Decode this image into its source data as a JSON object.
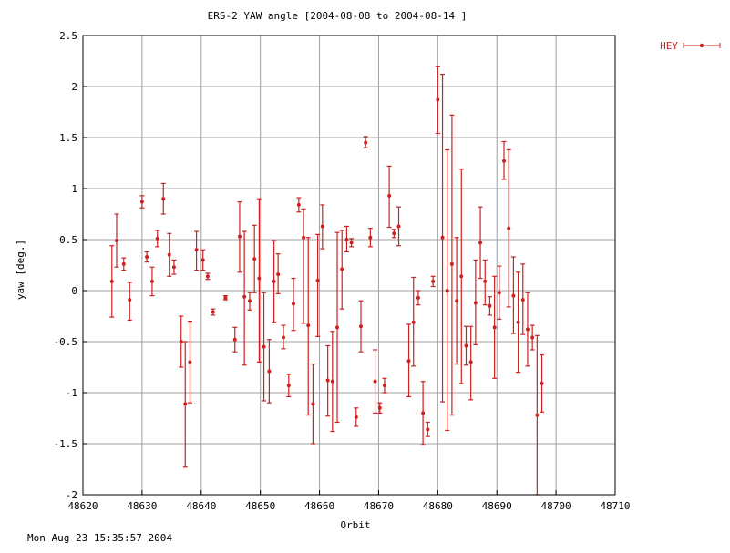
{
  "chart_data": {
    "type": "scatter",
    "title": "ERS-2 YAW angle [2004-08-08 to 2004-08-14 ]",
    "xlabel": "Orbit",
    "ylabel": "yaw [deg.]",
    "xlim": [
      48620,
      48710
    ],
    "ylim": [
      -2,
      2.5
    ],
    "x_ticks": [
      "48620",
      "48630",
      "48640",
      "48650",
      "48660",
      "48670",
      "48680",
      "48690",
      "48700",
      "48710"
    ],
    "y_ticks": [
      "-2",
      "-1.5",
      "-1",
      "-0.5",
      "0",
      "0.5",
      "1",
      "1.5",
      "2",
      "2.5"
    ],
    "grid": true,
    "legend_position": "top-right",
    "color": "#cc2222",
    "series": [
      {
        "name": "HEY",
        "points": [
          {
            "x": 48624.9,
            "y": 0.09,
            "lo": -0.26,
            "hi": 0.44
          },
          {
            "x": 48625.7,
            "y": 0.49,
            "lo": 0.23,
            "hi": 0.75
          },
          {
            "x": 48626.9,
            "y": 0.26,
            "lo": 0.2,
            "hi": 0.32
          },
          {
            "x": 48627.9,
            "y": -0.09,
            "lo": -0.29,
            "hi": 0.08
          },
          {
            "x": 48630.0,
            "y": 0.87,
            "lo": 0.81,
            "hi": 0.93
          },
          {
            "x": 48630.8,
            "y": 0.33,
            "lo": 0.28,
            "hi": 0.38
          },
          {
            "x": 48631.7,
            "y": 0.09,
            "lo": -0.05,
            "hi": 0.23
          },
          {
            "x": 48632.6,
            "y": 0.51,
            "lo": 0.43,
            "hi": 0.59
          },
          {
            "x": 48633.6,
            "y": 0.9,
            "lo": 0.75,
            "hi": 1.05
          },
          {
            "x": 48634.6,
            "y": 0.35,
            "lo": 0.14,
            "hi": 0.56
          },
          {
            "x": 48635.4,
            "y": 0.23,
            "lo": 0.16,
            "hi": 0.3
          },
          {
            "x": 48636.6,
            "y": -0.5,
            "lo": -0.75,
            "hi": -0.25
          },
          {
            "x": 48637.3,
            "y": -1.11,
            "lo": -1.73,
            "hi": -0.5
          },
          {
            "x": 48638.1,
            "y": -0.7,
            "lo": -1.1,
            "hi": -0.3
          },
          {
            "x": 48639.2,
            "y": 0.4,
            "lo": 0.2,
            "hi": 0.58
          },
          {
            "x": 48640.3,
            "y": 0.3,
            "lo": 0.2,
            "hi": 0.4
          },
          {
            "x": 48641.1,
            "y": 0.14,
            "lo": 0.11,
            "hi": 0.17
          },
          {
            "x": 48642.0,
            "y": -0.21,
            "lo": -0.24,
            "hi": -0.18
          },
          {
            "x": 48644.1,
            "y": -0.07,
            "lo": -0.09,
            "hi": -0.05
          },
          {
            "x": 48645.7,
            "y": -0.48,
            "lo": -0.6,
            "hi": -0.36
          },
          {
            "x": 48646.5,
            "y": 0.53,
            "lo": 0.18,
            "hi": 0.87
          },
          {
            "x": 48647.3,
            "y": -0.06,
            "lo": -0.73,
            "hi": 0.58
          },
          {
            "x": 48648.2,
            "y": -0.1,
            "lo": -0.19,
            "hi": -0.02
          },
          {
            "x": 48649.0,
            "y": 0.31,
            "lo": -0.02,
            "hi": 0.64
          },
          {
            "x": 48649.8,
            "y": 0.12,
            "lo": -0.7,
            "hi": 0.9
          },
          {
            "x": 48650.6,
            "y": -0.55,
            "lo": -1.08,
            "hi": -0.02
          },
          {
            "x": 48651.5,
            "y": -0.79,
            "lo": -1.1,
            "hi": -0.48
          },
          {
            "x": 48652.3,
            "y": 0.09,
            "lo": -0.31,
            "hi": 0.49
          },
          {
            "x": 48653.0,
            "y": 0.16,
            "lo": -0.03,
            "hi": 0.36
          },
          {
            "x": 48653.9,
            "y": -0.46,
            "lo": -0.57,
            "hi": -0.34
          },
          {
            "x": 48654.8,
            "y": -0.93,
            "lo": -1.04,
            "hi": -0.82
          },
          {
            "x": 48655.6,
            "y": -0.13,
            "lo": -0.39,
            "hi": 0.12
          },
          {
            "x": 48656.5,
            "y": 0.84,
            "lo": 0.77,
            "hi": 0.91
          },
          {
            "x": 48657.3,
            "y": 0.52,
            "lo": -0.32,
            "hi": 0.8
          },
          {
            "x": 48658.1,
            "y": -0.34,
            "lo": -1.22,
            "hi": 0.52
          },
          {
            "x": 48658.9,
            "y": -1.11,
            "lo": -1.5,
            "hi": -0.72
          },
          {
            "x": 48659.7,
            "y": 0.1,
            "lo": -0.45,
            "hi": 0.55
          },
          {
            "x": 48660.5,
            "y": 0.63,
            "lo": 0.41,
            "hi": 0.84
          },
          {
            "x": 48661.4,
            "y": -0.88,
            "lo": -1.23,
            "hi": -0.54
          },
          {
            "x": 48662.2,
            "y": -0.89,
            "lo": -1.38,
            "hi": -0.4
          },
          {
            "x": 48663.0,
            "y": -0.36,
            "lo": -1.29,
            "hi": 0.57
          },
          {
            "x": 48663.8,
            "y": 0.21,
            "lo": -0.18,
            "hi": 0.59
          },
          {
            "x": 48664.6,
            "y": 0.5,
            "lo": 0.38,
            "hi": 0.63
          },
          {
            "x": 48665.4,
            "y": 0.47,
            "lo": 0.43,
            "hi": 0.51
          },
          {
            "x": 48666.2,
            "y": -1.24,
            "lo": -1.33,
            "hi": -1.15
          },
          {
            "x": 48667.0,
            "y": -0.35,
            "lo": -0.6,
            "hi": -0.1
          },
          {
            "x": 48667.8,
            "y": 1.45,
            "lo": 1.4,
            "hi": 1.51
          },
          {
            "x": 48668.6,
            "y": 0.52,
            "lo": 0.43,
            "hi": 0.61
          },
          {
            "x": 48669.4,
            "y": -0.89,
            "lo": -1.2,
            "hi": -0.58
          },
          {
            "x": 48670.2,
            "y": -1.15,
            "lo": -1.2,
            "hi": -1.1
          },
          {
            "x": 48671.0,
            "y": -0.93,
            "lo": -1.0,
            "hi": -0.86
          },
          {
            "x": 48671.8,
            "y": 0.93,
            "lo": 0.62,
            "hi": 1.22
          },
          {
            "x": 48672.6,
            "y": 0.56,
            "lo": 0.52,
            "hi": 0.6
          },
          {
            "x": 48673.4,
            "y": 0.63,
            "lo": 0.44,
            "hi": 0.82
          },
          {
            "x": 48675.1,
            "y": -0.69,
            "lo": -1.04,
            "hi": -0.33
          },
          {
            "x": 48675.9,
            "y": -0.31,
            "lo": -0.74,
            "hi": 0.13
          },
          {
            "x": 48676.7,
            "y": -0.07,
            "lo": -0.14,
            "hi": 0.0
          },
          {
            "x": 48677.5,
            "y": -1.2,
            "lo": -1.51,
            "hi": -0.89
          },
          {
            "x": 48678.3,
            "y": -1.36,
            "lo": -1.43,
            "hi": -1.29
          },
          {
            "x": 48679.2,
            "y": 0.09,
            "lo": 0.04,
            "hi": 0.14
          },
          {
            "x": 48680.0,
            "y": 1.87,
            "lo": 1.54,
            "hi": 2.2
          },
          {
            "x": 48680.8,
            "y": 0.52,
            "lo": -1.09,
            "hi": 2.12
          },
          {
            "x": 48681.6,
            "y": 0.0,
            "lo": -1.37,
            "hi": 1.38
          },
          {
            "x": 48682.4,
            "y": 0.26,
            "lo": -1.22,
            "hi": 1.72
          },
          {
            "x": 48683.2,
            "y": -0.1,
            "lo": -0.72,
            "hi": 0.52
          },
          {
            "x": 48684.0,
            "y": 0.14,
            "lo": -0.91,
            "hi": 1.19
          },
          {
            "x": 48684.8,
            "y": -0.54,
            "lo": -0.73,
            "hi": -0.35
          },
          {
            "x": 48685.6,
            "y": -0.7,
            "lo": -1.07,
            "hi": -0.35
          },
          {
            "x": 48686.4,
            "y": -0.12,
            "lo": -0.53,
            "hi": 0.3
          },
          {
            "x": 48687.2,
            "y": 0.47,
            "lo": 0.12,
            "hi": 0.82
          },
          {
            "x": 48688.0,
            "y": 0.09,
            "lo": -0.14,
            "hi": 0.3
          },
          {
            "x": 48688.8,
            "y": -0.15,
            "lo": -0.24,
            "hi": -0.06
          },
          {
            "x": 48689.6,
            "y": -0.36,
            "lo": -0.86,
            "hi": 0.14
          },
          {
            "x": 48690.4,
            "y": -0.02,
            "lo": -0.28,
            "hi": 0.24
          },
          {
            "x": 48691.2,
            "y": 1.27,
            "lo": 1.09,
            "hi": 1.46
          },
          {
            "x": 48692.0,
            "y": 0.61,
            "lo": -0.16,
            "hi": 1.38
          },
          {
            "x": 48692.8,
            "y": -0.05,
            "lo": -0.42,
            "hi": 0.33
          },
          {
            "x": 48693.6,
            "y": -0.31,
            "lo": -0.8,
            "hi": 0.18
          },
          {
            "x": 48694.4,
            "y": -0.09,
            "lo": -0.43,
            "hi": 0.26
          },
          {
            "x": 48695.2,
            "y": -0.38,
            "lo": -0.74,
            "hi": -0.02
          },
          {
            "x": 48696.0,
            "y": -0.46,
            "lo": -0.58,
            "hi": -0.34
          },
          {
            "x": 48696.8,
            "y": -1.22,
            "lo": -2.0,
            "hi": -0.44
          },
          {
            "x": 48697.6,
            "y": -0.91,
            "lo": -1.19,
            "hi": -0.63
          }
        ]
      }
    ]
  },
  "footer": {
    "timestamp": "Mon Aug 23 15:35:57 2004"
  }
}
